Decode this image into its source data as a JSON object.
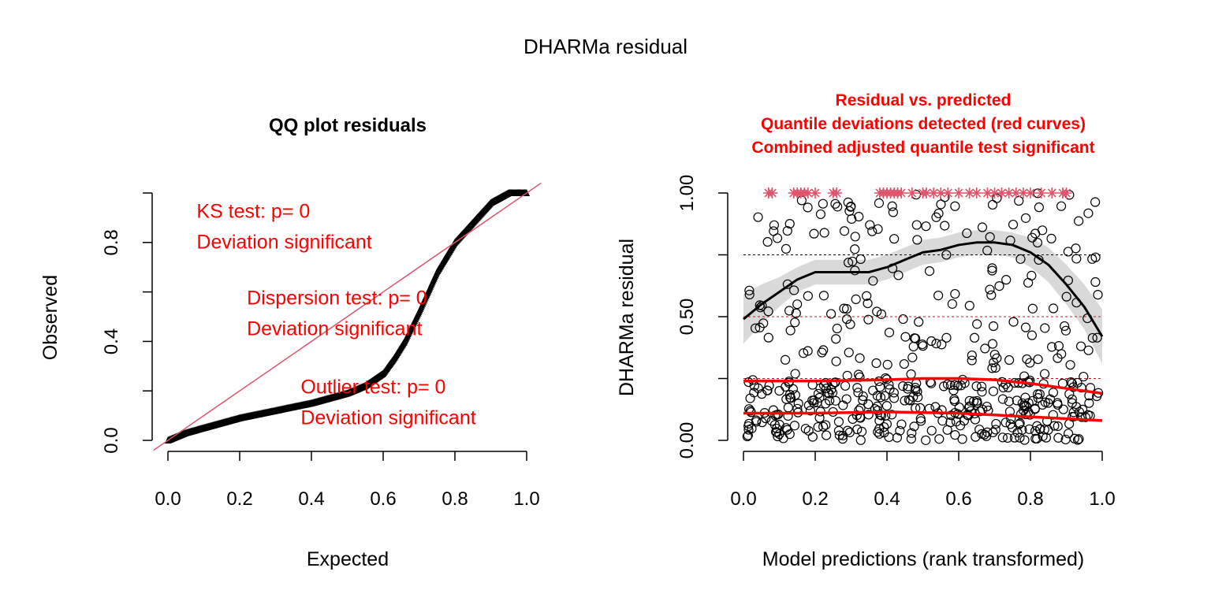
{
  "figure": {
    "title": "DHARMa residual"
  },
  "chart_data": [
    {
      "type": "scatter",
      "panel": "qq",
      "title": "QQ plot residuals",
      "xlabel": "Expected",
      "ylabel": "Observed",
      "xlim": [
        0.0,
        1.0
      ],
      "ylim": [
        0.0,
        1.0
      ],
      "xticks": [
        "0.0",
        "0.2",
        "0.4",
        "0.6",
        "0.8",
        "1.0"
      ],
      "yticks": [
        "0.0",
        "0.4",
        "0.8"
      ],
      "grid": false,
      "reference_line": {
        "from": [
          0,
          0
        ],
        "to": [
          1,
          1
        ],
        "color": "#DF536B"
      },
      "series_color": "#000000",
      "curve_knots": {
        "expected": [
          0.0,
          0.05,
          0.1,
          0.2,
          0.3,
          0.4,
          0.5,
          0.55,
          0.6,
          0.63,
          0.66,
          0.7,
          0.75,
          0.8,
          0.85,
          0.9,
          0.95,
          1.0
        ],
        "observed": [
          0.0,
          0.03,
          0.05,
          0.09,
          0.12,
          0.15,
          0.19,
          0.22,
          0.27,
          0.33,
          0.4,
          0.52,
          0.68,
          0.8,
          0.88,
          0.96,
          1.0,
          1.0
        ]
      },
      "annotations": [
        {
          "lines": [
            "KS test: p= 0",
            "Deviation  significant"
          ],
          "anchor": [
            0.08,
            0.9
          ]
        },
        {
          "lines": [
            "Dispersion test: p= 0",
            "Deviation  significant"
          ],
          "anchor": [
            0.22,
            0.55
          ]
        },
        {
          "lines": [
            "Outlier test: p= 0",
            "Deviation  significant"
          ],
          "anchor": [
            0.37,
            0.19
          ]
        }
      ]
    },
    {
      "type": "scatter",
      "panel": "residual-vs-predicted",
      "title_lines": [
        "Residual vs. predicted",
        "Quantile deviations detected (red curves)",
        "Combined adjusted quantile test significant"
      ],
      "title_color": "#ff0000",
      "xlabel": "Model predictions (rank transformed)",
      "ylabel": "DHARMa residual",
      "xlim": [
        0.0,
        1.0
      ],
      "ylim": [
        0.0,
        1.0
      ],
      "xticks": [
        "0.0",
        "0.2",
        "0.4",
        "0.6",
        "0.8",
        "1.0"
      ],
      "yticks": [
        "0.00",
        "0.50",
        "1.00"
      ],
      "quantile_lines": [
        0.25,
        0.5,
        0.75
      ],
      "quantile_line_colors": [
        "#ff0000",
        "#ff0000",
        "#000000"
      ],
      "point_count": 520,
      "smooth_curve": {
        "x": [
          0.0,
          0.05,
          0.1,
          0.15,
          0.2,
          0.25,
          0.3,
          0.35,
          0.4,
          0.45,
          0.5,
          0.55,
          0.6,
          0.65,
          0.7,
          0.75,
          0.8,
          0.85,
          0.9,
          0.95,
          1.0
        ],
        "y": [
          0.49,
          0.55,
          0.6,
          0.65,
          0.68,
          0.68,
          0.68,
          0.68,
          0.7,
          0.73,
          0.76,
          0.77,
          0.79,
          0.8,
          0.8,
          0.79,
          0.76,
          0.71,
          0.63,
          0.54,
          0.42
        ],
        "band_halfwidth": [
          0.1,
          0.08,
          0.06,
          0.05,
          0.05,
          0.05,
          0.05,
          0.05,
          0.05,
          0.05,
          0.05,
          0.05,
          0.05,
          0.05,
          0.05,
          0.05,
          0.06,
          0.07,
          0.08,
          0.09,
          0.11
        ],
        "color": "#000000",
        "band_color": "#d9d9d9"
      },
      "quantile_curves": [
        {
          "quantile": 0.25,
          "x": [
            0.0,
            0.2,
            0.4,
            0.5,
            0.6,
            0.7,
            0.8,
            0.9,
            1.0
          ],
          "y": [
            0.24,
            0.24,
            0.245,
            0.25,
            0.25,
            0.245,
            0.23,
            0.21,
            0.19
          ],
          "color": "#ff0000"
        },
        {
          "quantile": 0.5,
          "x": [
            0.0,
            0.2,
            0.4,
            0.6,
            0.8,
            1.0
          ],
          "y": [
            0.11,
            0.11,
            0.115,
            0.11,
            0.095,
            0.08
          ],
          "color": "#ff0000"
        }
      ],
      "outlier_markers": {
        "y": 1.0,
        "x": [
          0.07,
          0.08,
          0.14,
          0.15,
          0.16,
          0.17,
          0.18,
          0.2,
          0.25,
          0.26,
          0.38,
          0.39,
          0.4,
          0.41,
          0.42,
          0.43,
          0.44,
          0.47,
          0.5,
          0.51,
          0.53,
          0.55,
          0.57,
          0.6,
          0.63,
          0.65,
          0.68,
          0.7,
          0.72,
          0.74,
          0.76,
          0.78,
          0.8,
          0.83,
          0.86,
          0.89,
          0.9
        ],
        "color": "#DF536B"
      }
    }
  ]
}
